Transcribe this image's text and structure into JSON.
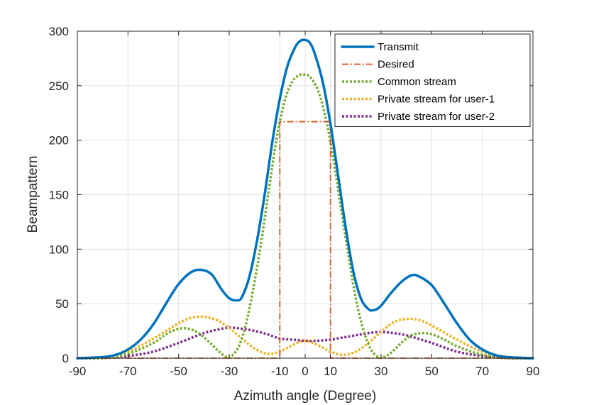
{
  "chart_data": {
    "type": "line",
    "title": "",
    "xlabel": "Azimuth angle (Degree)",
    "ylabel": "Beampattern",
    "xlim": [
      -90,
      90
    ],
    "ylim": [
      0,
      300
    ],
    "xticks": [
      -90,
      -70,
      -50,
      -30,
      -10,
      0,
      10,
      30,
      50,
      70,
      90
    ],
    "yticks": [
      0,
      50,
      100,
      150,
      200,
      250,
      300
    ],
    "grid": true,
    "legend_position": "top-right",
    "series": [
      {
        "name": "Transmit",
        "color": "#0072BD",
        "style": "solid",
        "x": [
          -90,
          -80,
          -75,
          -70,
          -65,
          -60,
          -55,
          -50,
          -45,
          -41,
          -37,
          -33,
          -30,
          -27,
          -25,
          -22,
          -19,
          -16,
          -13,
          -10,
          -7,
          -4,
          -2,
          0,
          2,
          4,
          7,
          10,
          13,
          16,
          19,
          22,
          25,
          27,
          29,
          31,
          34,
          38,
          42,
          45,
          50,
          55,
          60,
          65,
          70,
          75,
          80,
          90
        ],
        "values": [
          0,
          1,
          3,
          8,
          17,
          31,
          50,
          68,
          79,
          81,
          77,
          63,
          55,
          53,
          56,
          75,
          108,
          150,
          198,
          238,
          268,
          285,
          291,
          292,
          289,
          278,
          253,
          215,
          168,
          120,
          80,
          55,
          45,
          44,
          46,
          51,
          60,
          70,
          76,
          75,
          67,
          50,
          32,
          17,
          8,
          3,
          1,
          0
        ]
      },
      {
        "name": "Desired",
        "color": "#D95319",
        "style": "dashdot",
        "x": [
          -90,
          -10,
          -10,
          10,
          10,
          90
        ],
        "values": [
          0,
          0,
          217,
          217,
          0,
          0
        ]
      },
      {
        "name": "Common stream",
        "color": "#77AC30",
        "style": "dotted",
        "x": [
          -90,
          -80,
          -70,
          -60,
          -55,
          -50,
          -46,
          -42,
          -38,
          -34,
          -31,
          -29,
          -26,
          -23,
          -20,
          -17,
          -14,
          -11,
          -8,
          -5,
          -2,
          0,
          2,
          5,
          8,
          11,
          14,
          17,
          20,
          23,
          26,
          29,
          31,
          34,
          38,
          42,
          46,
          50,
          55,
          60,
          70,
          80,
          90
        ],
        "values": [
          0,
          0,
          4,
          14,
          22,
          27,
          27,
          23,
          15,
          6,
          1,
          2,
          12,
          35,
          70,
          112,
          160,
          205,
          237,
          254,
          260,
          260,
          258,
          246,
          222,
          185,
          140,
          96,
          55,
          26,
          8,
          1,
          1,
          5,
          14,
          21,
          23,
          22,
          17,
          11,
          3,
          0,
          0
        ]
      },
      {
        "name": "Private stream for user-1",
        "color": "#EDB120",
        "style": "dotted",
        "x": [
          -90,
          -80,
          -70,
          -60,
          -50,
          -45,
          -40,
          -35,
          -30,
          -25,
          -20,
          -15,
          -10,
          -5,
          0,
          5,
          10,
          15,
          20,
          25,
          30,
          35,
          40,
          45,
          50,
          60,
          70,
          80,
          90
        ],
        "values": [
          0,
          1,
          6,
          18,
          32,
          37,
          38,
          35,
          28,
          18,
          9,
          4,
          6,
          12,
          16,
          12,
          6,
          3,
          6,
          14,
          24,
          33,
          36,
          35,
          30,
          17,
          6,
          1,
          0
        ]
      },
      {
        "name": "Private stream for user-2",
        "color": "#7E2F8E",
        "style": "dotted",
        "x": [
          -90,
          -80,
          -70,
          -60,
          -50,
          -40,
          -35,
          -30,
          -25,
          -20,
          -15,
          -10,
          -5,
          0,
          5,
          10,
          15,
          20,
          25,
          30,
          35,
          40,
          50,
          60,
          70,
          80,
          90
        ],
        "values": [
          0,
          0,
          2,
          6,
          14,
          23,
          26,
          28,
          27,
          25,
          22,
          18,
          17,
          16,
          16,
          17,
          19,
          21,
          23,
          24,
          23,
          21,
          14,
          6,
          2,
          0,
          0
        ]
      }
    ]
  }
}
